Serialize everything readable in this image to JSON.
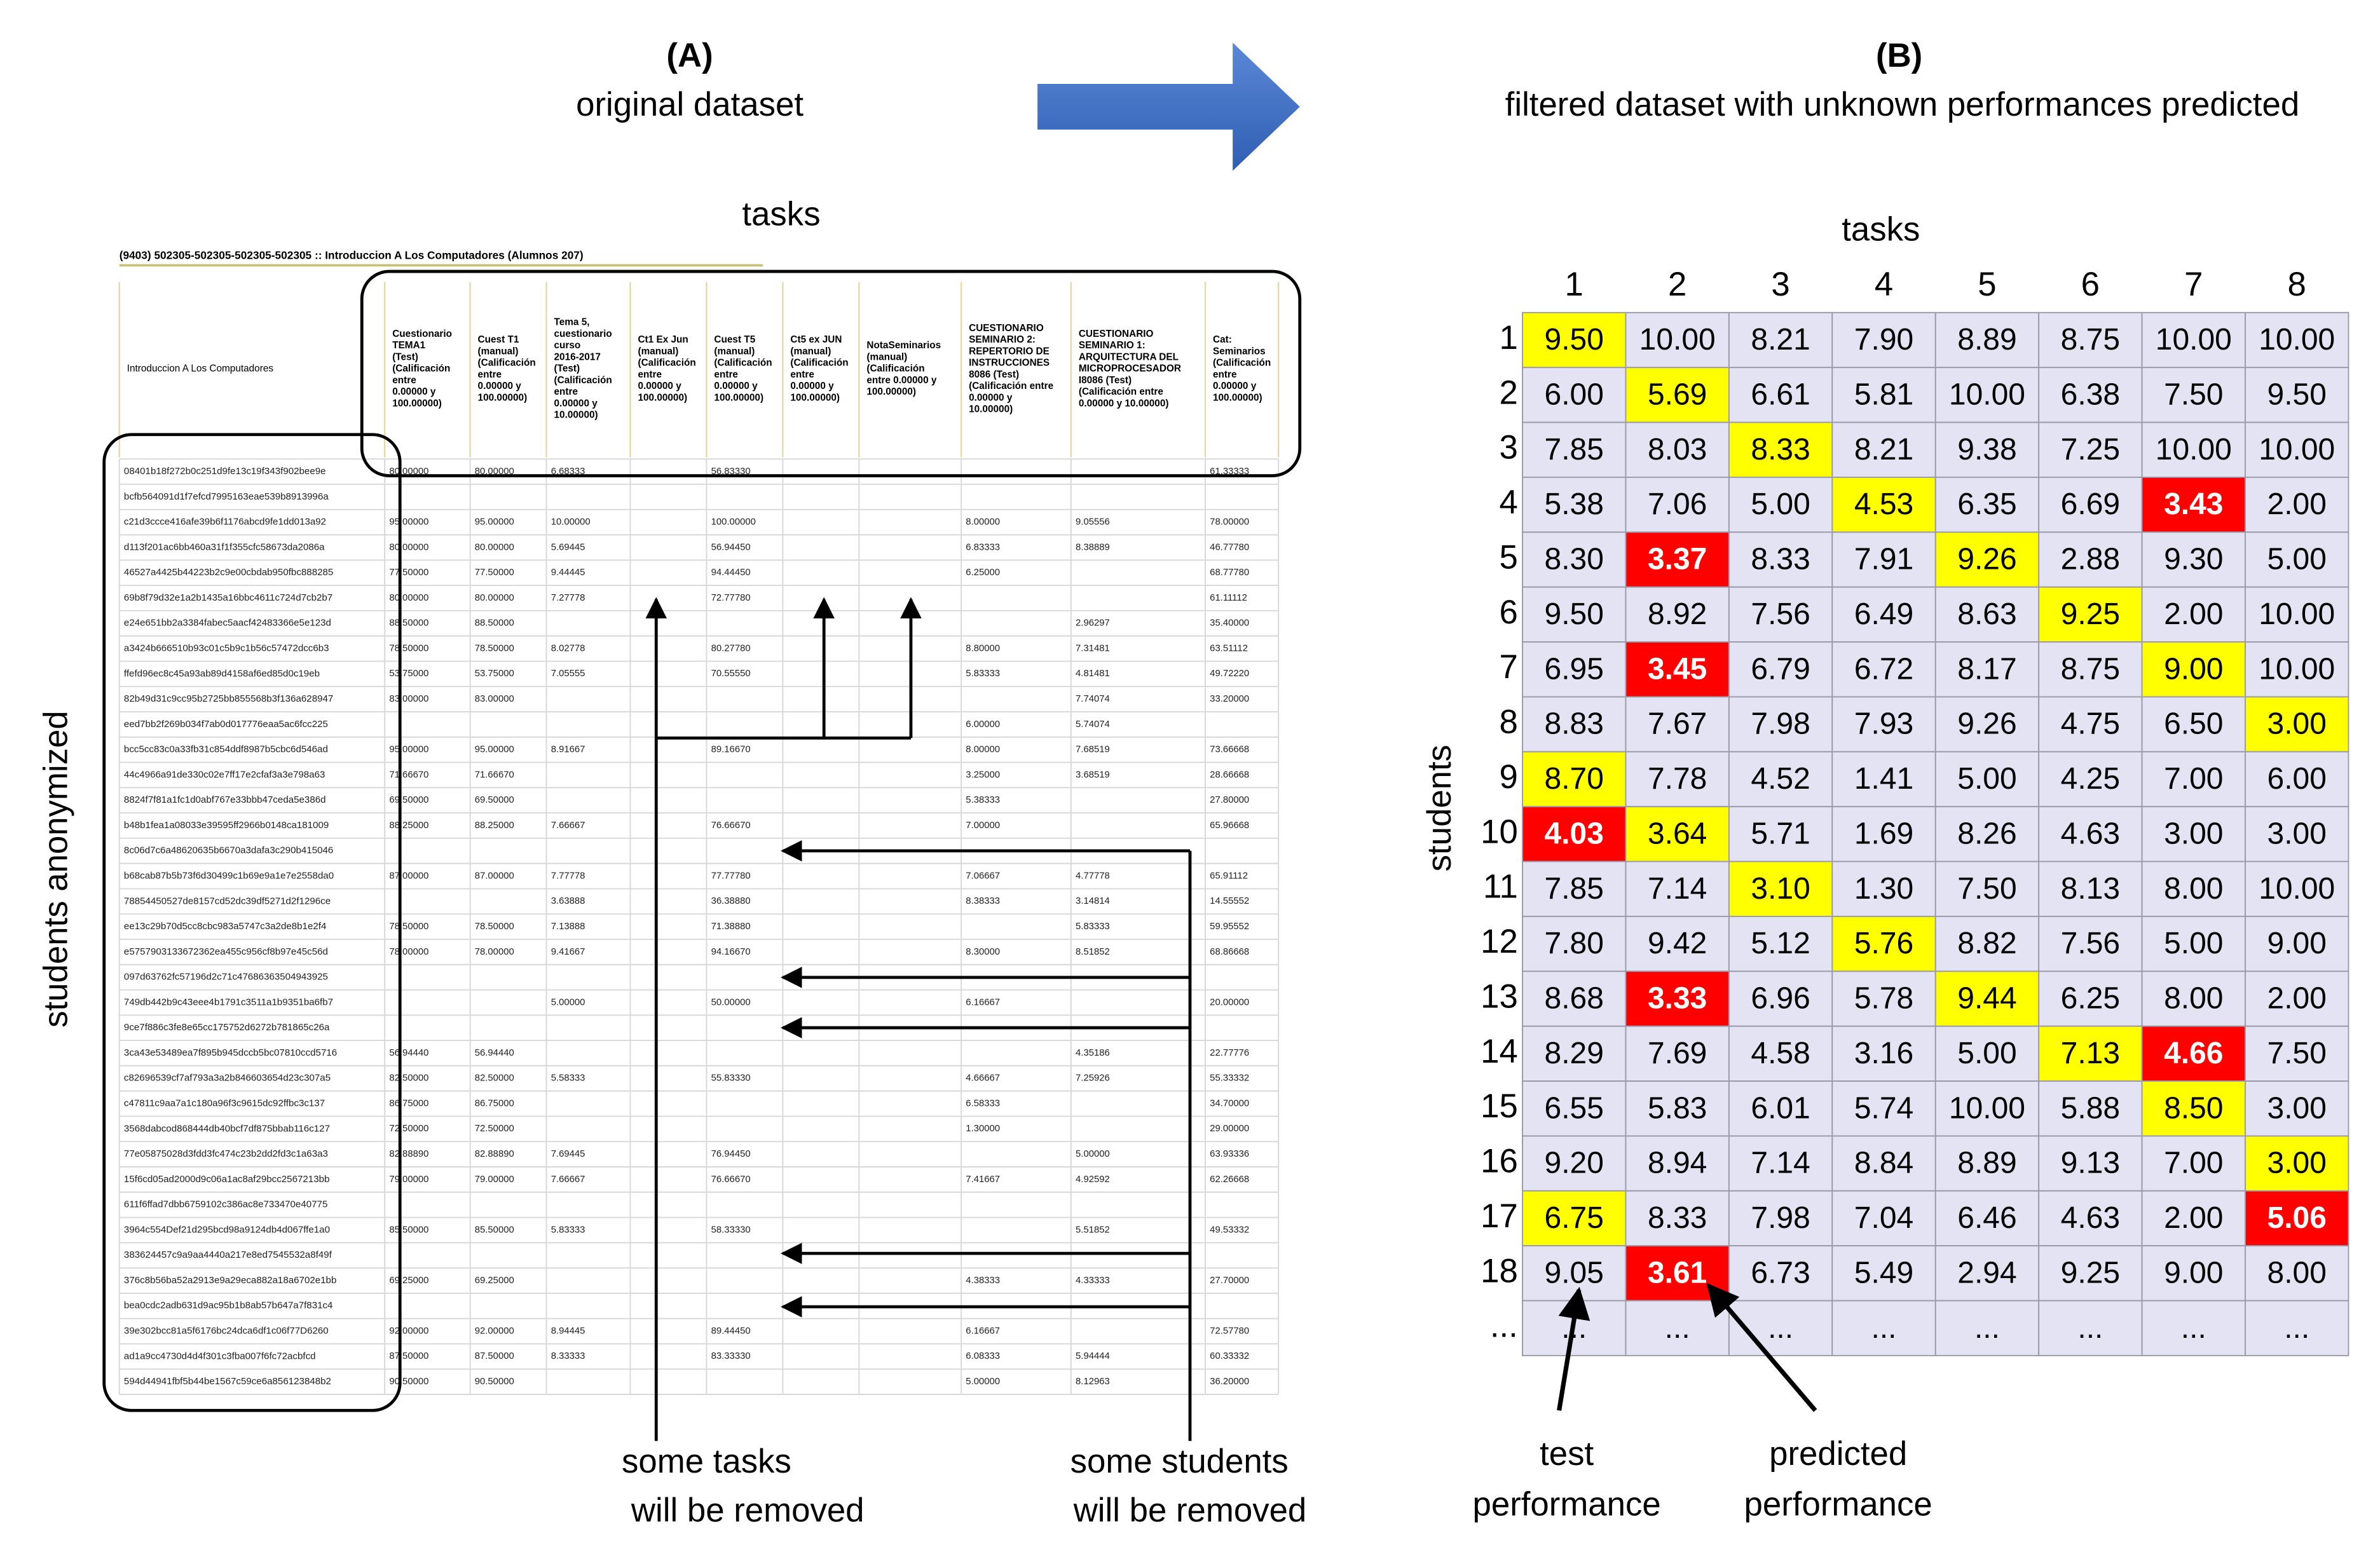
{
  "panel_a": {
    "label": "(A)",
    "caption": "original dataset",
    "tasks_note": "tasks",
    "students_note": "students anonymized",
    "tasks_removed": [
      "some tasks",
      "will be removed"
    ],
    "students_removed": [
      "some students",
      "will be removed"
    ],
    "table": {
      "title": "(9403) 502305-502305-502305-502305 :: Introduccion A Los Computadores (Alumnos 207)",
      "headers": [
        [
          "Introduccion A Los Computadores"
        ],
        [
          "Cuestionario",
          "TEMA1",
          "(Test)",
          "(Calificación",
          "entre",
          "0.00000 y",
          "100.00000)"
        ],
        [
          "Cuest T1",
          "(manual)",
          "(Calificación",
          "entre",
          "0.00000 y",
          "100.00000)"
        ],
        [
          "Tema 5,",
          "cuestionario",
          "curso",
          "2016-2017",
          "(Test)",
          "(Calificación",
          "entre",
          "0.00000 y",
          "10.00000)"
        ],
        [
          "Ct1 Ex Jun",
          "(manual)",
          "(Calificación",
          "entre",
          "0.00000 y",
          "100.00000)"
        ],
        [
          "Cuest T5",
          "(manual)",
          "(Calificación",
          "entre",
          "0.00000 y",
          "100.00000)"
        ],
        [
          "Ct5 ex JUN",
          "(manual)",
          "(Calificación",
          "entre",
          "0.00000 y",
          "100.00000)"
        ],
        [
          "NotaSeminarios",
          "(manual)",
          "(Calificación",
          "entre 0.00000 y",
          "100.00000)"
        ],
        [
          "CUESTIONARIO",
          "SEMINARIO 2:",
          "REPERTORIO DE",
          "INSTRUCCIONES",
          "8086 (Test)",
          "(Calificación entre",
          "0.00000 y",
          "10.00000)"
        ],
        [
          "CUESTIONARIO",
          "SEMINARIO 1:",
          "ARQUITECTURA DEL",
          "MICROPROCESADOR",
          "I8086 (Test)",
          "(Calificación entre",
          "0.00000 y 10.00000)"
        ],
        [
          "Cat:",
          "Seminarios",
          "(Calificación",
          "entre",
          "0.00000 y",
          "100.00000)"
        ]
      ],
      "rows": [
        [
          "08401b18f272b0c251d9fe13c19f343f902bee9e",
          "80.00000",
          "80.00000",
          "6.68333",
          null,
          "56.83330",
          null,
          null,
          null,
          null,
          "61.33333"
        ],
        [
          "bcfb564091d1f7efcd7995163eae539b8913996a",
          null,
          null,
          null,
          null,
          null,
          null,
          null,
          null,
          null,
          null
        ],
        [
          "c21d3ccce416afe39b6f1176abcd9fe1dd013a92",
          "95.00000",
          "95.00000",
          "10.00000",
          null,
          "100.00000",
          null,
          null,
          "8.00000",
          "9.05556",
          "78.00000"
        ],
        [
          "d113f201ac6bb460a31f1f355cfc58673da2086a",
          "80.00000",
          "80.00000",
          "5.69445",
          null,
          "56.94450",
          null,
          null,
          "6.83333",
          "8.38889",
          "46.77780"
        ],
        [
          "46527a4425b44223b2c9e00cbdab950fbc888285",
          "77.50000",
          "77.50000",
          "9.44445",
          null,
          "94.44450",
          null,
          null,
          "6.25000",
          null,
          "68.77780"
        ],
        [
          "69b8f79d32e1a2b1435a16bbc4611c724d7cb2b7",
          "80.00000",
          "80.00000",
          "7.27778",
          null,
          "72.77780",
          null,
          null,
          null,
          null,
          "61.11112"
        ],
        [
          "e24e651bb2a3384fabec5aacf42483366e5e123d",
          "88.50000",
          "88.50000",
          null,
          null,
          null,
          null,
          null,
          null,
          "2.96297",
          "35.40000"
        ],
        [
          "a3424b666510b93c01c5b9c1b56c57472dcc6b3",
          "78.50000",
          "78.50000",
          "8.02778",
          null,
          "80.27780",
          null,
          null,
          "8.80000",
          "7.31481",
          "63.51112"
        ],
        [
          "ffefd96ec8c45a93ab89d4158af6ed85d0c19eb",
          "53.75000",
          "53.75000",
          "7.05555",
          null,
          "70.55550",
          null,
          null,
          "5.83333",
          "4.81481",
          "49.72220"
        ],
        [
          "82b49d31c9cc95b2725bb855568b3f136a628947",
          "83.00000",
          "83.00000",
          null,
          null,
          null,
          null,
          null,
          null,
          "7.74074",
          "33.20000"
        ],
        [
          "eed7bb2f269b034f7ab0d017776eaa5ac6fcc225",
          null,
          null,
          null,
          null,
          null,
          null,
          null,
          "6.00000",
          "5.74074",
          null
        ],
        [
          "bcc5cc83c0a33fb31c854ddf8987b5cbc6d546ad",
          "95.00000",
          "95.00000",
          "8.91667",
          null,
          "89.16670",
          null,
          null,
          "8.00000",
          "7.68519",
          "73.66668"
        ],
        [
          "44c4966a91de330c02e7ff17e2cfaf3a3e798a63",
          "71.66670",
          "71.66670",
          null,
          null,
          null,
          null,
          null,
          "3.25000",
          "3.68519",
          "28.66668"
        ],
        [
          "8824f7f81a1fc1d0abf767e33bbb47ceda5e386d",
          "69.50000",
          "69.50000",
          null,
          null,
          null,
          null,
          null,
          "5.38333",
          null,
          "27.80000"
        ],
        [
          "b48b1fea1a08033e39595ff2966b0148ca181009",
          "88.25000",
          "88.25000",
          "7.66667",
          null,
          "76.66670",
          null,
          null,
          "7.00000",
          null,
          "65.96668"
        ],
        [
          "8c06d7c6a48620635b6670a3dafa3c290b415046",
          null,
          null,
          null,
          null,
          null,
          null,
          null,
          null,
          null,
          null
        ],
        [
          "b68cab87b5b73f6d30499c1b69e9a1e7e2558da0",
          "87.00000",
          "87.00000",
          "7.77778",
          null,
          "77.77780",
          null,
          null,
          "7.06667",
          "4.77778",
          "65.91112"
        ],
        [
          "78854450527de8157cd52dc39df5271d2f1296ce",
          null,
          null,
          "3.63888",
          null,
          "36.38880",
          null,
          null,
          "8.38333",
          "3.14814",
          "14.55552"
        ],
        [
          "ee13c29b70d5cc8cbc983a5747c3a2de8b1e2f4",
          "78.50000",
          "78.50000",
          "7.13888",
          null,
          "71.38880",
          null,
          null,
          null,
          "5.83333",
          "59.95552"
        ],
        [
          "e5757903133672362ea455c956cf8b97e45c56d",
          "78.00000",
          "78.00000",
          "9.41667",
          null,
          "94.16670",
          null,
          null,
          "8.30000",
          "8.51852",
          "68.86668"
        ],
        [
          "097d63762fc57196d2c71c47686363504943925",
          null,
          null,
          null,
          null,
          null,
          null,
          null,
          null,
          null,
          null
        ],
        [
          "749db442b9c43eee4b1791c3511a1b9351ba6fb7",
          null,
          null,
          "5.00000",
          null,
          "50.00000",
          null,
          null,
          "6.16667",
          null,
          "20.00000"
        ],
        [
          "9ce7f886c3fe8e65cc175752d6272b781865c26a",
          null,
          null,
          null,
          null,
          null,
          null,
          null,
          null,
          null,
          null
        ],
        [
          "3ca43e53489ea7f895b945dccb5bc07810ccd5716",
          "56.94440",
          "56.94440",
          null,
          null,
          null,
          null,
          null,
          null,
          "4.35186",
          "22.77776"
        ],
        [
          "c82696539cf7af793a3a2b846603654d23c307a5",
          "82.50000",
          "82.50000",
          "5.58333",
          null,
          "55.83330",
          null,
          null,
          "4.66667",
          "7.25926",
          "55.33332"
        ],
        [
          "c47811c9aa7a1c180a96f3c9615dc92ffbc3c137",
          "86.75000",
          "86.75000",
          null,
          null,
          null,
          null,
          null,
          "6.58333",
          null,
          "34.70000"
        ],
        [
          "3568dabcod868444db40bcf7df875bbab116c127",
          "72.50000",
          "72.50000",
          null,
          null,
          null,
          null,
          null,
          "1.30000",
          null,
          "29.00000"
        ],
        [
          "77e05875028d3fdd3fc474c23b2dd2fd3c1a63a3",
          "82.88890",
          "82.88890",
          "7.69445",
          null,
          "76.94450",
          null,
          null,
          null,
          "5.00000",
          "63.93336"
        ],
        [
          "15f6cd05ad2000d9c06a1ac8af29bcc2567213bb",
          "79.00000",
          "79.00000",
          "7.66667",
          null,
          "76.66670",
          null,
          null,
          "7.41667",
          "4.92592",
          "62.26668"
        ],
        [
          "611f6ffad7dbb6759102c386ac8e733470e40775",
          null,
          null,
          null,
          null,
          null,
          null,
          null,
          null,
          null,
          null
        ],
        [
          "3964c554Def21d295bcd98a9124db4d067ffe1a0",
          "85.50000",
          "85.50000",
          "5.83333",
          null,
          "58.33330",
          null,
          null,
          null,
          "5.51852",
          "49.53332"
        ],
        [
          "383624457c9a9aa4440a217e8ed7545532a8f49f",
          null,
          null,
          null,
          null,
          null,
          null,
          null,
          null,
          null,
          null
        ],
        [
          "376c8b56ba52a2913e9a29eca882a18a6702e1bb",
          "69.25000",
          "69.25000",
          null,
          null,
          null,
          null,
          null,
          "4.38333",
          "4.33333",
          "27.70000"
        ],
        [
          "bea0cdc2adb631d9ac95b1b8ab57b647a7f831c4",
          null,
          null,
          null,
          null,
          null,
          null,
          null,
          null,
          null,
          null
        ],
        [
          "39e302bcc81a5f6176bc24dca6df1c06f77D6260",
          "92.00000",
          "92.00000",
          "8.94445",
          null,
          "89.44450",
          null,
          null,
          "6.16667",
          null,
          "72.57780"
        ],
        [
          "ad1a9cc4730d4d4f301c3fba007f6fc72acbfcd",
          "87.50000",
          "87.50000",
          "8.33333",
          null,
          "83.33330",
          null,
          null,
          "6.08333",
          "5.94444",
          "60.33332"
        ],
        [
          "594d44941fbf5b44be1567c59ce6a856123848b2",
          "90.50000",
          "90.50000",
          null,
          null,
          null,
          null,
          null,
          "5.00000",
          "8.12963",
          "36.20000"
        ]
      ]
    }
  },
  "panel_b": {
    "label": "(B)",
    "caption": "filtered dataset with unknown performances predicted",
    "x_title": "tasks",
    "y_title": "students",
    "colors": {
      "cell": "#e3e3f3",
      "test": "#ffff00",
      "predicted": "#ff0000"
    },
    "columns": [
      "1",
      "2",
      "3",
      "4",
      "5",
      "6",
      "7",
      "8"
    ],
    "row_labels": [
      "1",
      "2",
      "3",
      "4",
      "5",
      "6",
      "7",
      "8",
      "9",
      "10",
      "11",
      "12",
      "13",
      "14",
      "15",
      "16",
      "17",
      "18",
      "..."
    ],
    "rows": [
      [
        {
          "text": "9.50",
          "kind": "test"
        },
        "10.00",
        "8.21",
        "7.90",
        "8.89",
        "8.75",
        "10.00",
        "10.00"
      ],
      [
        "6.00",
        {
          "text": "5.69",
          "kind": "test"
        },
        "6.61",
        "5.81",
        "10.00",
        "6.38",
        "7.50",
        "9.50"
      ],
      [
        "7.85",
        "8.03",
        {
          "text": "8.33",
          "kind": "test"
        },
        "8.21",
        "9.38",
        "7.25",
        "10.00",
        "10.00"
      ],
      [
        "5.38",
        "7.06",
        "5.00",
        {
          "text": "4.53",
          "kind": "test"
        },
        "6.35",
        "6.69",
        {
          "text": "3.43",
          "kind": "predicted"
        },
        "2.00"
      ],
      [
        "8.30",
        {
          "text": "3.37",
          "kind": "predicted"
        },
        "8.33",
        "7.91",
        {
          "text": "9.26",
          "kind": "test"
        },
        "2.88",
        "9.30",
        "5.00"
      ],
      [
        "9.50",
        "8.92",
        "7.56",
        "6.49",
        "8.63",
        {
          "text": "9.25",
          "kind": "test"
        },
        "2.00",
        "10.00"
      ],
      [
        "6.95",
        {
          "text": "3.45",
          "kind": "predicted"
        },
        "6.79",
        "6.72",
        "8.17",
        "8.75",
        {
          "text": "9.00",
          "kind": "test"
        },
        "10.00"
      ],
      [
        "8.83",
        "7.67",
        "7.98",
        "7.93",
        "9.26",
        "4.75",
        "6.50",
        {
          "text": "3.00",
          "kind": "test"
        }
      ],
      [
        {
          "text": "8.70",
          "kind": "test"
        },
        "7.78",
        "4.52",
        "1.41",
        "5.00",
        "4.25",
        "7.00",
        "6.00"
      ],
      [
        {
          "text": "4.03",
          "kind": "predicted"
        },
        {
          "text": "3.64",
          "kind": "test"
        },
        "5.71",
        "1.69",
        "8.26",
        "4.63",
        "3.00",
        "3.00"
      ],
      [
        "7.85",
        "7.14",
        {
          "text": "3.10",
          "kind": "test"
        },
        "1.30",
        "7.50",
        "8.13",
        "8.00",
        "10.00"
      ],
      [
        "7.80",
        "9.42",
        "5.12",
        {
          "text": "5.76",
          "kind": "test"
        },
        "8.82",
        "7.56",
        "5.00",
        "9.00"
      ],
      [
        "8.68",
        {
          "text": "3.33",
          "kind": "predicted"
        },
        "6.96",
        "5.78",
        {
          "text": "9.44",
          "kind": "test"
        },
        "6.25",
        "8.00",
        "2.00"
      ],
      [
        "8.29",
        "7.69",
        "4.58",
        "3.16",
        "5.00",
        {
          "text": "7.13",
          "kind": "test"
        },
        {
          "text": "4.66",
          "kind": "predicted"
        },
        "7.50"
      ],
      [
        "6.55",
        "5.83",
        "6.01",
        "5.74",
        "10.00",
        "5.88",
        {
          "text": "8.50",
          "kind": "test"
        },
        "3.00"
      ],
      [
        "9.20",
        "8.94",
        "7.14",
        "8.84",
        "8.89",
        "9.13",
        "7.00",
        {
          "text": "3.00",
          "kind": "test"
        }
      ],
      [
        {
          "text": "6.75",
          "kind": "test"
        },
        "8.33",
        "7.98",
        "7.04",
        "6.46",
        "4.63",
        "2.00",
        {
          "text": "5.06",
          "kind": "predicted"
        }
      ],
      [
        "9.05",
        {
          "text": "3.61",
          "kind": "predicted"
        },
        "6.73",
        "5.49",
        "2.94",
        "9.25",
        "9.00",
        "8.00"
      ],
      [
        "...",
        "...",
        "...",
        "...",
        "...",
        "...",
        "...",
        "..."
      ]
    ],
    "test_note": [
      "test",
      "performance"
    ],
    "predicted_note": [
      "predicted",
      "performance"
    ]
  }
}
